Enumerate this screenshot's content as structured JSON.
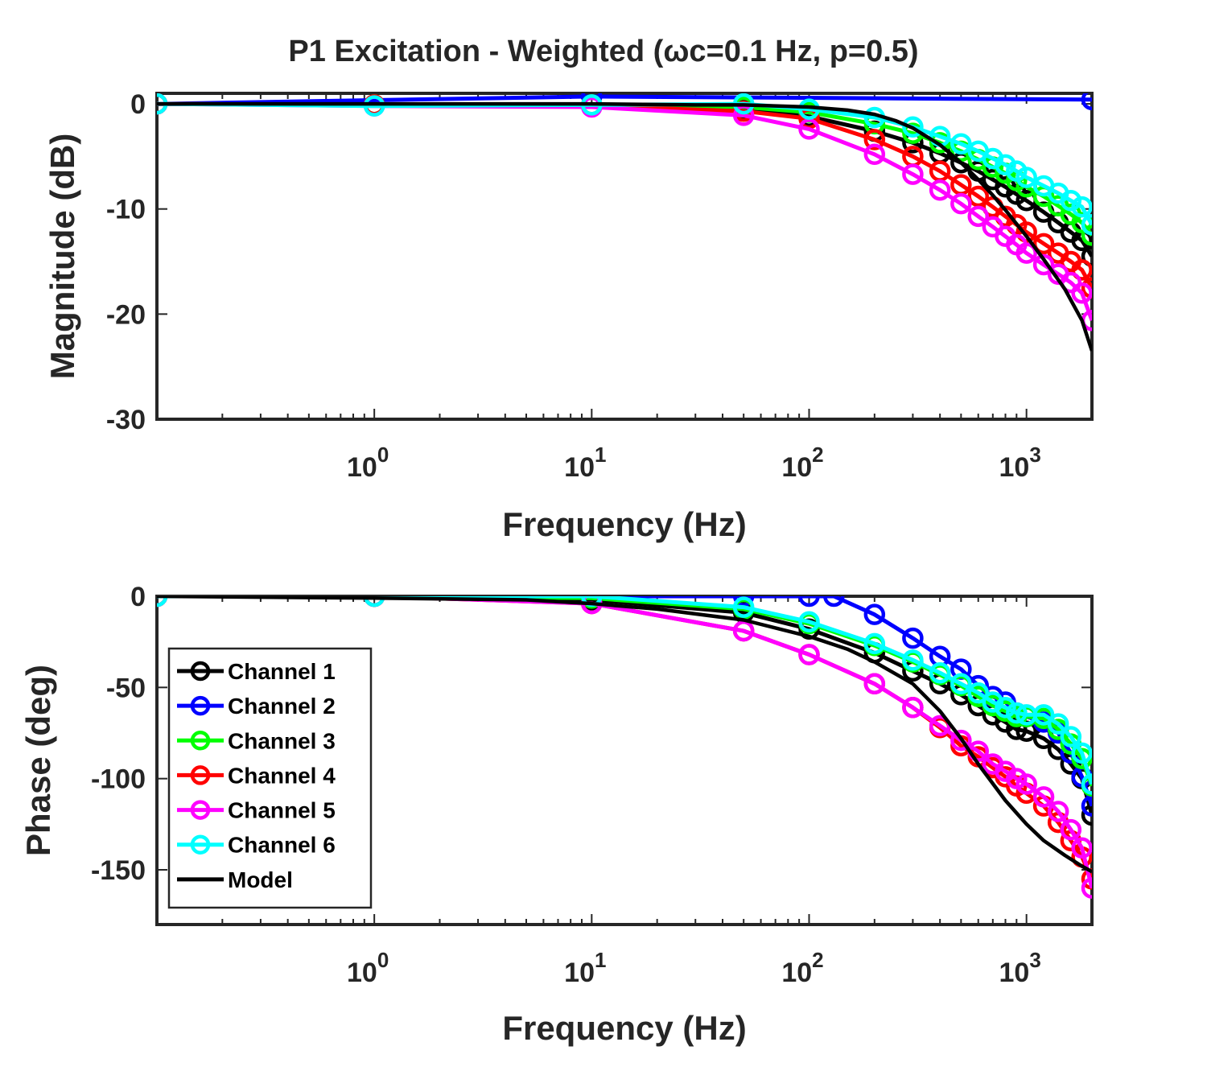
{
  "figure_title": "P1 Excitation - Weighted (ωc=0.1 Hz, p=0.5)",
  "colors": {
    "Channel 1": "#000000",
    "Channel 2": "#0000ff",
    "Channel 3": "#00ff00",
    "Channel 4": "#ff0000",
    "Channel 5": "#ff00ff",
    "Channel 6": "#00ffff",
    "Model": "#000000"
  },
  "legend": {
    "placement": "bottom-left",
    "entries": [
      "Channel 1",
      "Channel 2",
      "Channel 3",
      "Channel 4",
      "Channel 5",
      "Channel 6",
      "Model"
    ]
  },
  "chart_data": [
    {
      "type": "line",
      "title": "P1 Excitation - Weighted (ωc=0.1 Hz, p=0.5)",
      "xlabel": "Frequency (Hz)",
      "ylabel": "Magnitude (dB)",
      "xscale": "log",
      "xlim": [
        0.1,
        2000
      ],
      "ylim": [
        -30,
        1
      ],
      "xticks": [
        1,
        10,
        100,
        1000
      ],
      "xtick_labels": [
        {
          "base": "10",
          "exp": "0"
        },
        {
          "base": "10",
          "exp": "1"
        },
        {
          "base": "10",
          "exp": "2"
        },
        {
          "base": "10",
          "exp": "3"
        }
      ],
      "yticks": [
        0,
        -10,
        -20,
        -30
      ],
      "ytick_labels": [
        "0",
        "-10",
        "-20",
        "-30"
      ],
      "grid": false,
      "series": [
        {
          "name": "Channel 1",
          "markers": true,
          "x": [
            0.1,
            1,
            10,
            50,
            100,
            200,
            300,
            400,
            500,
            600,
            700,
            800,
            900,
            1000,
            1200,
            1400,
            1600,
            1800,
            2000
          ],
          "y": [
            0,
            -0.1,
            -0.2,
            -0.5,
            -1.2,
            -2.6,
            -3.7,
            -4.7,
            -5.6,
            -6.4,
            -7.2,
            -7.9,
            -8.6,
            -9.2,
            -10.3,
            -11.3,
            -12.2,
            -13.0,
            -14.5
          ]
        },
        {
          "name": "Channel 2",
          "markers": true,
          "x": [
            0.1,
            10,
            2000
          ],
          "y": [
            0,
            0.7,
            0.4
          ]
        },
        {
          "name": "Channel 3",
          "markers": true,
          "x": [
            0.1,
            1,
            10,
            50,
            100,
            200,
            300,
            400,
            500,
            600,
            700,
            800,
            900,
            1000,
            1200,
            1400,
            1600,
            1800,
            2000
          ],
          "y": [
            0,
            -0.1,
            -0.1,
            -0.3,
            -0.8,
            -1.9,
            -2.8,
            -3.7,
            -4.5,
            -5.3,
            -6.0,
            -6.6,
            -7.3,
            -7.9,
            -8.8,
            -9.7,
            -10.5,
            -11.3,
            -12.5
          ]
        },
        {
          "name": "Channel 4",
          "markers": true,
          "x": [
            0.1,
            1,
            10,
            50,
            100,
            200,
            300,
            400,
            500,
            600,
            700,
            800,
            900,
            1000,
            1200,
            1400,
            1600,
            1800,
            2000
          ],
          "y": [
            0,
            -0.1,
            -0.2,
            -0.7,
            -1.4,
            -3.4,
            -5.0,
            -6.4,
            -7.7,
            -8.8,
            -9.8,
            -10.7,
            -11.5,
            -12.2,
            -13.3,
            -14.2,
            -15.0,
            -15.8,
            -17.5
          ]
        },
        {
          "name": "Channel 5",
          "markers": true,
          "x": [
            0.1,
            1,
            10,
            50,
            100,
            200,
            300,
            400,
            500,
            600,
            700,
            800,
            900,
            1000,
            1200,
            1400,
            1600,
            1800,
            2000
          ],
          "y": [
            0,
            -0.2,
            -0.3,
            -1.1,
            -2.4,
            -4.8,
            -6.7,
            -8.2,
            -9.5,
            -10.7,
            -11.7,
            -12.6,
            -13.4,
            -14.2,
            -15.3,
            -16.2,
            -17.0,
            -18.0,
            -20.6
          ]
        },
        {
          "name": "Channel 6",
          "markers": true,
          "x": [
            0.1,
            1,
            10,
            50,
            100,
            200,
            300,
            400,
            500,
            600,
            700,
            800,
            900,
            1000,
            1200,
            1400,
            1600,
            1800,
            2000
          ],
          "y": [
            0,
            -0.2,
            -0.1,
            0,
            -0.5,
            -1.3,
            -2.2,
            -3.1,
            -3.8,
            -4.5,
            -5.2,
            -5.8,
            -6.4,
            -7.0,
            -7.8,
            -8.5,
            -9.2,
            -9.8,
            -11.5
          ]
        },
        {
          "name": "Model",
          "markers": false,
          "x": [
            0.1,
            1,
            10,
            30,
            50,
            100,
            150,
            200,
            250,
            300,
            400,
            500,
            600,
            700,
            800,
            1000,
            1200,
            1500,
            1800,
            2000
          ],
          "y": [
            0,
            0,
            0,
            -0.1,
            -0.1,
            -0.3,
            -0.6,
            -1.0,
            -1.6,
            -2.3,
            -3.9,
            -5.6,
            -7.2,
            -8.7,
            -10.1,
            -12.6,
            -14.8,
            -17.6,
            -20.6,
            -23.5
          ]
        }
      ]
    },
    {
      "type": "line",
      "xlabel": "Frequency (Hz)",
      "ylabel": "Phase (deg)",
      "xscale": "log",
      "xlim": [
        0.1,
        2000
      ],
      "ylim": [
        -180,
        0
      ],
      "xticks": [
        1,
        10,
        100,
        1000
      ],
      "xtick_labels": [
        {
          "base": "10",
          "exp": "0"
        },
        {
          "base": "10",
          "exp": "1"
        },
        {
          "base": "10",
          "exp": "2"
        },
        {
          "base": "10",
          "exp": "3"
        }
      ],
      "yticks": [
        0,
        -50,
        -100,
        -150
      ],
      "ytick_labels": [
        "0",
        "-50",
        "-100",
        "-150"
      ],
      "grid": false,
      "series": [
        {
          "name": "Channel 1",
          "markers": true,
          "x": [
            0.1,
            1,
            10,
            50,
            100,
            200,
            300,
            400,
            500,
            600,
            700,
            800,
            900,
            1000,
            1200,
            1400,
            1600,
            1800,
            2000
          ],
          "y": [
            0,
            0,
            -2,
            -9,
            -18,
            -31,
            -41,
            -48,
            -54,
            -60,
            -65,
            -69,
            -73,
            -74,
            -78,
            -84,
            -92,
            -100,
            -120
          ]
        },
        {
          "name": "Channel 2",
          "markers": true,
          "x": [
            0.1,
            1,
            10,
            50,
            100,
            130,
            200,
            300,
            400,
            500,
            600,
            700,
            800,
            900,
            1000,
            1200,
            1400,
            1600,
            1800,
            2000
          ],
          "y": [
            0,
            0,
            0,
            0,
            0,
            0,
            -10,
            -23,
            -33,
            -40,
            -49,
            -55,
            -58,
            -64,
            -66,
            -69,
            -75,
            -86,
            -99,
            -115
          ]
        },
        {
          "name": "Channel 3",
          "markers": true,
          "x": [
            0.1,
            1,
            10,
            50,
            100,
            200,
            300,
            400,
            500,
            600,
            700,
            800,
            900,
            1000,
            1200,
            1400,
            1600,
            1800,
            2000
          ],
          "y": [
            0,
            0,
            -1,
            -7,
            -15,
            -27,
            -36,
            -43,
            -49,
            -55,
            -60,
            -63,
            -66,
            -66,
            -67,
            -73,
            -81,
            -89,
            -104
          ]
        },
        {
          "name": "Channel 4",
          "markers": true,
          "x": [
            0.1,
            1,
            10,
            50,
            100,
            200,
            300,
            400,
            500,
            600,
            700,
            800,
            900,
            1000,
            1200,
            1400,
            1600,
            1800,
            2000
          ],
          "y": [
            0,
            0,
            -4,
            -19,
            -32,
            -48,
            -61,
            -72,
            -82,
            -88,
            -94,
            -99,
            -104,
            -108,
            -115,
            -124,
            -134,
            -143,
            -155
          ]
        },
        {
          "name": "Channel 5",
          "markers": true,
          "x": [
            0.1,
            1,
            10,
            50,
            100,
            200,
            300,
            400,
            500,
            600,
            700,
            800,
            900,
            1000,
            1200,
            1400,
            1600,
            1800,
            2000
          ],
          "y": [
            0,
            0,
            -4,
            -19,
            -32,
            -48,
            -61,
            -71,
            -79,
            -85,
            -92,
            -96,
            -100,
            -103,
            -110,
            -118,
            -128,
            -138,
            -160
          ]
        },
        {
          "name": "Channel 6",
          "markers": true,
          "x": [
            0.1,
            1,
            10,
            50,
            100,
            200,
            300,
            400,
            500,
            600,
            700,
            800,
            900,
            1000,
            1200,
            1400,
            1600,
            1800,
            2000
          ],
          "y": [
            0,
            0,
            0,
            -6,
            -14,
            -26,
            -35,
            -42,
            -48,
            -53,
            -58,
            -61,
            -64,
            -65,
            -65,
            -70,
            -77,
            -86,
            -103
          ]
        },
        {
          "name": "Model",
          "markers": false,
          "x": [
            0.1,
            1,
            5,
            10,
            20,
            50,
            100,
            150,
            200,
            300,
            400,
            500,
            600,
            800,
            1000,
            1200,
            1500,
            1800,
            2000
          ],
          "y": [
            0,
            -1,
            -2,
            -4,
            -7,
            -13,
            -22,
            -29,
            -36,
            -48,
            -63,
            -78,
            -92,
            -112,
            -125,
            -134,
            -142,
            -148,
            -151
          ]
        }
      ]
    }
  ]
}
